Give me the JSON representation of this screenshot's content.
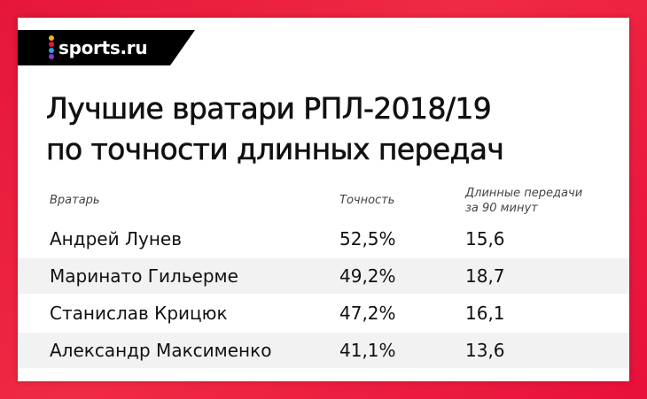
{
  "brand": {
    "logo_text": "sports.ru",
    "accent": "#e5163a"
  },
  "title": {
    "line1": "Лучшие вратари РПЛ-2018/19",
    "line2": "по точности длинных передач"
  },
  "table": {
    "headers": {
      "name": "Вратарь",
      "accuracy": "Точность",
      "long_passes_line1": "Длинные передачи",
      "long_passes_line2": "за 90 минут"
    },
    "rows": [
      {
        "name": "Андрей Лунев",
        "accuracy": "52,5%",
        "long_passes": "15,6"
      },
      {
        "name": "Маринато Гильерме",
        "accuracy": "49,2%",
        "long_passes": "18,7"
      },
      {
        "name": "Станислав Крицюк",
        "accuracy": "47,2%",
        "long_passes": "16,1"
      },
      {
        "name": "Александр Максименко",
        "accuracy": "41,1%",
        "long_passes": "13,6"
      }
    ]
  }
}
